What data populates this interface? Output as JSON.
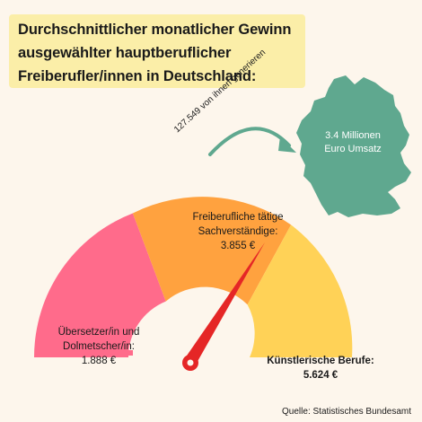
{
  "title_lines": [
    "Durchschnittlicher monatlicher Gewinn",
    "ausgewählter hauptberuflicher",
    "Freiberufler/innen in Deutschland:"
  ],
  "germany": {
    "arrow_label": "127.549 von ihnen generieren",
    "text_line1": "3.4 Millionen",
    "text_line2": "Euro Umsatz"
  },
  "source": "Quelle: Statistisches Bundesamt",
  "colors": {
    "background": "#fdf6ec",
    "title_bg": "#fbeea8",
    "segment_pink": "#ff6b8b",
    "segment_orange": "#ffa23f",
    "segment_yellow": "#ffd257",
    "needle": "#e52626",
    "germany": "#5fa88f",
    "arrow": "#5fa88f"
  },
  "chart_data": {
    "type": "gauge",
    "title": "Durchschnittlicher monatlicher Gewinn ausgewählter hauptberuflicher Freiberufler/innen in Deutschland:",
    "segments": [
      {
        "name_line1": "Übersetzer/in und",
        "name_line2": "Dolmetscher/in:",
        "value_label": "1.888 €",
        "value": 1888,
        "color": "#ff6b8b"
      },
      {
        "name_line1": "Freiberufliche tätige",
        "name_line2": "Sachverständige:",
        "value_label": "3.855 €",
        "value": 3855,
        "color": "#ffa23f"
      },
      {
        "name_line1": "Künstlerische Berufe:",
        "name_line2": "",
        "value_label": "5.624 €",
        "value": 5624,
        "color": "#ffd257"
      }
    ],
    "needle_points_to": "Freiberufliche tätige Sachverständige:"
  }
}
